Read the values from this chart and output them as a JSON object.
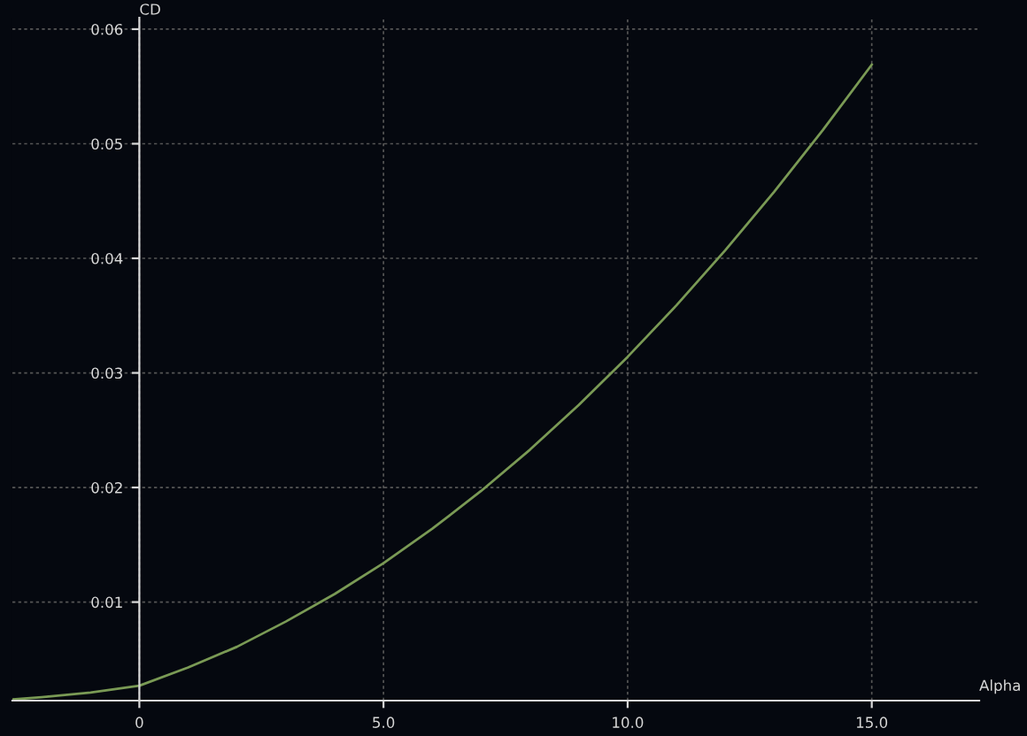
{
  "chart_data": {
    "type": "line",
    "xlabel": "Alpha",
    "ylabel": "CD",
    "x": [
      -2.6,
      -2,
      -1,
      0,
      1,
      2,
      3,
      4,
      5,
      6,
      7,
      8,
      9,
      10,
      11,
      12,
      13,
      14,
      15
    ],
    "series": [
      {
        "color": "#7a9a55",
        "values": [
          0.0015,
          0.0017,
          0.0021,
          0.0027,
          0.0043,
          0.0061,
          0.0083,
          0.0107,
          0.0134,
          0.0164,
          0.0197,
          0.0233,
          0.0272,
          0.0314,
          0.0359,
          0.0407,
          0.0458,
          0.0512,
          0.0569
        ]
      }
    ],
    "xlim": [
      -2.6,
      17.2
    ],
    "ylim": [
      0.0014,
      0.061
    ],
    "xticks": [
      {
        "value": 0,
        "label": "0"
      },
      {
        "value": 5,
        "label": "5.0"
      },
      {
        "value": 10,
        "label": "10.0"
      },
      {
        "value": 15,
        "label": "15.0"
      }
    ],
    "yticks": [
      0.01,
      0.02,
      0.03,
      0.04,
      0.05,
      0.06
    ],
    "grid": true,
    "line_style": "solid",
    "marker": "none"
  }
}
